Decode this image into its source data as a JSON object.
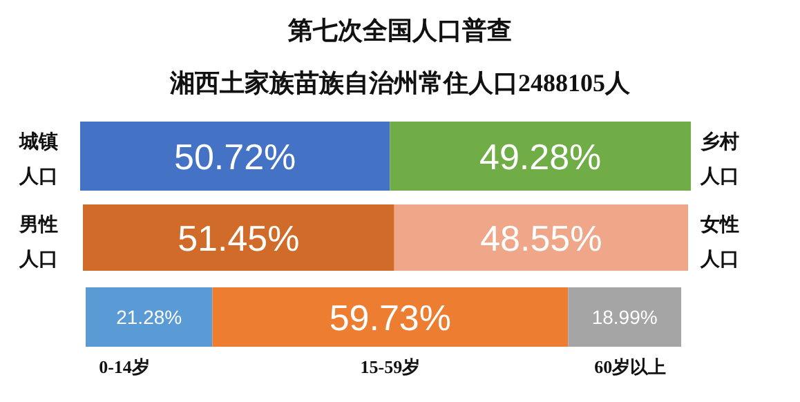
{
  "chart_data": [
    {
      "type": "bar",
      "orientation": "horizontal",
      "stacked": true,
      "xlim": [
        0,
        100
      ],
      "legend": false,
      "title": "第七次全国人口普查",
      "subtitle": "湘西土家族苗族自治州常住人口2488105人",
      "categories": [
        null
      ],
      "series": [
        {
          "name": "城镇人口",
          "color": "#4472c4",
          "values": [
            50.72
          ],
          "value_labels": [
            "50.72%"
          ]
        },
        {
          "name": "乡村人口",
          "color": "#70ad47",
          "values": [
            49.28
          ],
          "value_labels": [
            "49.28%"
          ]
        }
      ]
    },
    {
      "type": "bar",
      "orientation": "horizontal",
      "stacked": true,
      "xlim": [
        0,
        100
      ],
      "legend": false,
      "categories": [
        null
      ],
      "series": [
        {
          "name": "男性人口",
          "color": "#d06b2a",
          "values": [
            51.45
          ],
          "value_labels": [
            "51.45%"
          ]
        },
        {
          "name": "女性人口",
          "color": "#f0a688",
          "values": [
            48.55
          ],
          "value_labels": [
            "48.55%"
          ]
        }
      ]
    },
    {
      "type": "bar",
      "orientation": "horizontal",
      "stacked": true,
      "xlim": [
        0,
        100
      ],
      "legend": "bottom",
      "categories": [
        null
      ],
      "series": [
        {
          "name": "0-14岁",
          "color": "#5b9bd5",
          "values": [
            21.28
          ],
          "value_labels": [
            "21.28%"
          ]
        },
        {
          "name": "15-59岁",
          "color": "#ed7d31",
          "values": [
            59.73
          ],
          "value_labels": [
            "59.73%"
          ]
        },
        {
          "name": "60岁以上",
          "color": "#a5a5a5",
          "values": [
            18.99
          ],
          "value_labels": [
            "18.99%"
          ]
        }
      ]
    }
  ]
}
